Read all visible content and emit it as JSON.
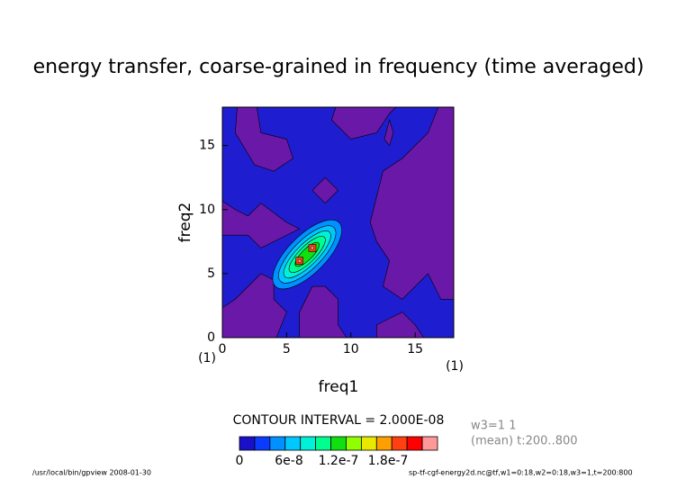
{
  "chart_data": {
    "type": "contour",
    "title": "energy transfer, coarse-grained in frequency (time averaged)",
    "xlabel": "freq1",
    "ylabel": "freq2",
    "xunit": "(1)",
    "yunit": "(1)",
    "xlim": [
      0,
      18
    ],
    "ylim": [
      0,
      18
    ],
    "xticks": [
      0,
      5,
      10,
      15
    ],
    "yticks": [
      0,
      5,
      10,
      15
    ],
    "contour_interval_label": "CONTOUR INTERVAL = 2.000E-08",
    "colorbar": {
      "lim": [
        0,
        2.4e-07
      ],
      "ticks": [
        0,
        6e-08,
        1.2e-07,
        1.8e-07
      ],
      "colors": [
        "#1a10c8",
        "#0a3cff",
        "#0090ff",
        "#00c8ff",
        "#00f0d8",
        "#00ff90",
        "#10e010",
        "#90ff00",
        "#e8e800",
        "#ffa000",
        "#ff4010",
        "#ff0000",
        "#ff9898"
      ]
    },
    "info": [
      "w3=1 1",
      "(mean) t:200..800"
    ],
    "footer_left": "/usr/local/bin/gpview  2008-01-30",
    "footer_right": "sp-tf-cgf-energy2d.nc@tf,w1=0:18,w2=0:18,w3=1,t=200:800"
  }
}
